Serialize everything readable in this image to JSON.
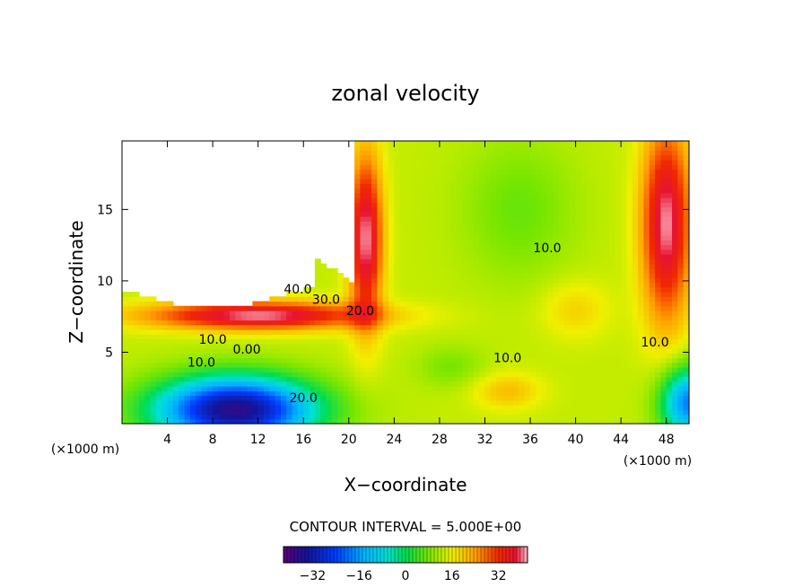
{
  "chart_data": {
    "type": "heatmap",
    "title": "zonal velocity",
    "xlabel": "X−coordinate",
    "ylabel": "Z−coordinate",
    "x_units_left": "(×1000 m)",
    "x_units_right": "(×1000 m)",
    "xlim": [
      0,
      50
    ],
    "ylim": [
      0,
      19.8
    ],
    "x_ticks": [
      4,
      8,
      12,
      16,
      20,
      24,
      28,
      32,
      36,
      40,
      44,
      48
    ],
    "x_tick_labels": [
      "4",
      "8",
      "12",
      "16",
      "20",
      "24",
      "28",
      "32",
      "36",
      "40",
      "44",
      "48"
    ],
    "y_ticks": [
      5,
      10,
      15
    ],
    "y_tick_labels": [
      "5",
      "10",
      "15"
    ],
    "contour_interval_text": "CONTOUR INTERVAL = 5.000E+00",
    "colorbar": {
      "range": [
        -42,
        42
      ],
      "ticks": [
        -32,
        -16,
        0,
        16,
        32
      ],
      "tick_labels": [
        "−32",
        "−16",
        "0",
        "16",
        "32"
      ]
    },
    "contour_labels": [
      {
        "text": "40.0",
        "x": 15.5,
        "z": 9.1
      },
      {
        "text": "30.0",
        "x": 18.0,
        "z": 8.4
      },
      {
        "text": "20.0",
        "x": 21.0,
        "z": 7.6
      },
      {
        "text": "10.0",
        "x": 37.5,
        "z": 12.0
      },
      {
        "text": "10.0",
        "x": 8.0,
        "z": 5.6
      },
      {
        "text": "0.00",
        "x": 11.0,
        "z": 4.9
      },
      {
        "text": "10.0",
        "x": 7.0,
        "z": 4.0
      },
      {
        "text": "20.0",
        "x": 16.0,
        "z": 1.5
      },
      {
        "text": "10.0",
        "x": 34.0,
        "z": 4.3
      },
      {
        "text": "10.0",
        "x": 47.0,
        "z": 5.4
      }
    ],
    "note": "field approximates the zonal velocity pattern; blank region top-left is undefined"
  }
}
